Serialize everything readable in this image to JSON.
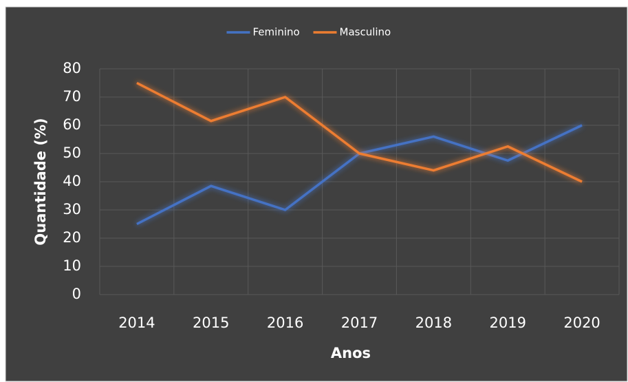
{
  "chart_data": {
    "type": "line",
    "xlabel": "Anos",
    "ylabel": "Quantidade (%)",
    "categories": [
      "2014",
      "2015",
      "2016",
      "2017",
      "2018",
      "2019",
      "2020"
    ],
    "series": [
      {
        "name": "Feminino",
        "color": "#4472c4",
        "values": [
          25,
          38.5,
          30,
          50,
          56,
          47.5,
          60
        ]
      },
      {
        "name": "Masculino",
        "color": "#ed7d31",
        "values": [
          75,
          61.5,
          70,
          50,
          44,
          52.5,
          40
        ]
      }
    ],
    "ylim": [
      0,
      80
    ],
    "yticks": [
      0,
      10,
      20,
      30,
      40,
      50,
      60,
      70,
      80
    ],
    "grid": true,
    "legend": "top"
  }
}
